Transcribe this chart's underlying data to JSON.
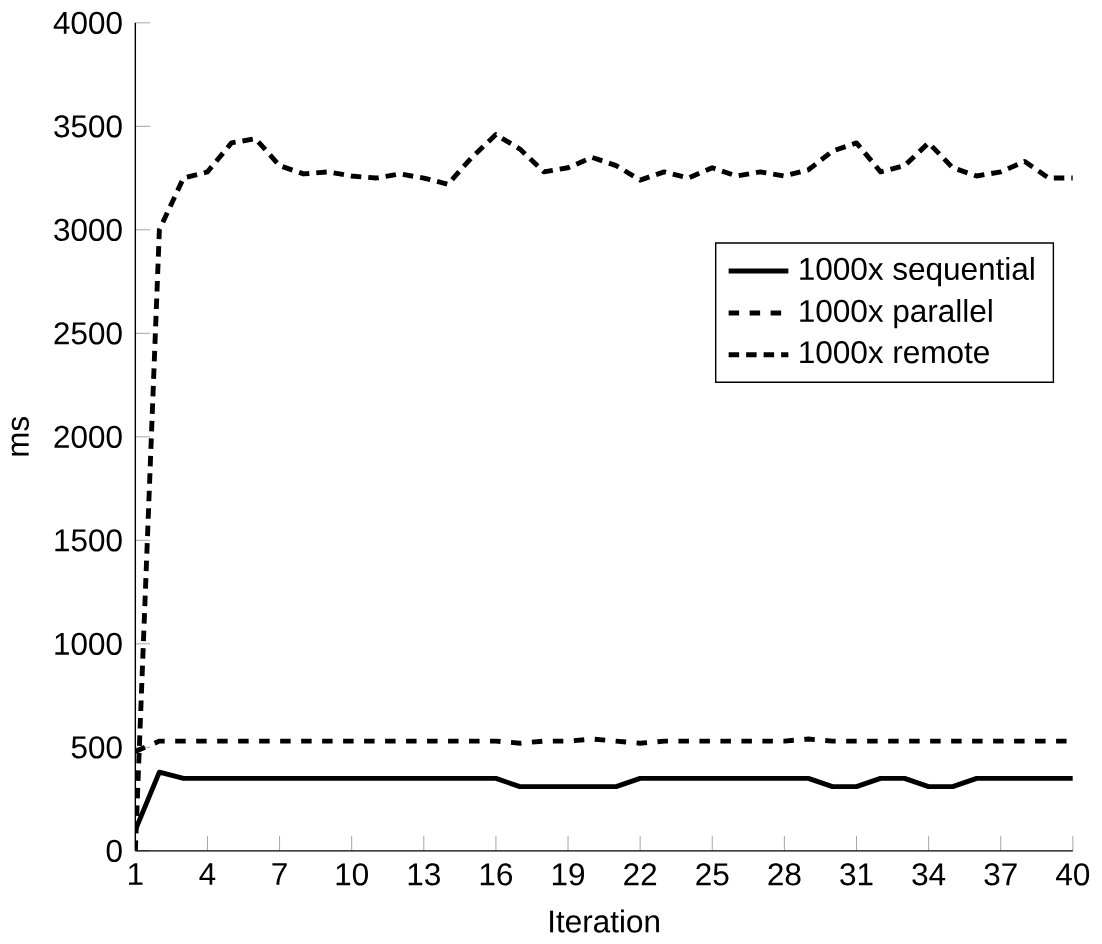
{
  "chart_data": {
    "type": "line",
    "xlabel": "Iteration",
    "ylabel": "ms",
    "x": [
      1,
      2,
      3,
      4,
      5,
      6,
      7,
      8,
      9,
      10,
      11,
      12,
      13,
      14,
      15,
      16,
      17,
      18,
      19,
      20,
      21,
      22,
      23,
      24,
      25,
      26,
      27,
      28,
      29,
      30,
      31,
      32,
      33,
      34,
      35,
      36,
      37,
      38,
      39,
      40
    ],
    "series": [
      {
        "name": "1000x sequential",
        "color": "#000000",
        "line_style": "solid",
        "values": [
          100,
          380,
          350,
          350,
          350,
          350,
          350,
          350,
          350,
          350,
          350,
          350,
          350,
          350,
          350,
          350,
          310,
          310,
          310,
          310,
          310,
          350,
          350,
          350,
          350,
          350,
          350,
          350,
          350,
          310,
          310,
          350,
          350,
          310,
          310,
          350,
          350,
          350,
          350,
          350
        ]
      },
      {
        "name": "1000x parallel",
        "color": "#000000",
        "line_style": "dashed",
        "values": [
          480,
          530,
          530,
          530,
          530,
          530,
          530,
          530,
          530,
          530,
          530,
          530,
          530,
          530,
          530,
          530,
          520,
          530,
          530,
          540,
          530,
          520,
          530,
          530,
          530,
          530,
          530,
          530,
          540,
          530,
          530,
          530,
          530,
          530,
          530,
          530,
          530,
          530,
          530,
          530
        ]
      },
      {
        "name": "1000x remote",
        "color": "#000000",
        "line_style": "dotted",
        "values": [
          0,
          3000,
          3250,
          3280,
          3420,
          3440,
          3310,
          3270,
          3280,
          3260,
          3250,
          3270,
          3250,
          3220,
          3350,
          3460,
          3390,
          3280,
          3300,
          3350,
          3310,
          3240,
          3280,
          3250,
          3300,
          3260,
          3280,
          3260,
          3290,
          3380,
          3420,
          3280,
          3310,
          3420,
          3300,
          3260,
          3280,
          3330,
          3250,
          3250
        ]
      }
    ],
    "xlim": [
      1,
      40
    ],
    "xticks": [
      1,
      4,
      7,
      10,
      13,
      16,
      19,
      22,
      25,
      28,
      31,
      34,
      37,
      40
    ],
    "ylim": [
      0,
      4000
    ],
    "yticks": [
      0,
      500,
      1000,
      1500,
      2000,
      2500,
      3000,
      3500,
      4000
    ],
    "grid": false,
    "legend": "right",
    "marker": "none"
  }
}
